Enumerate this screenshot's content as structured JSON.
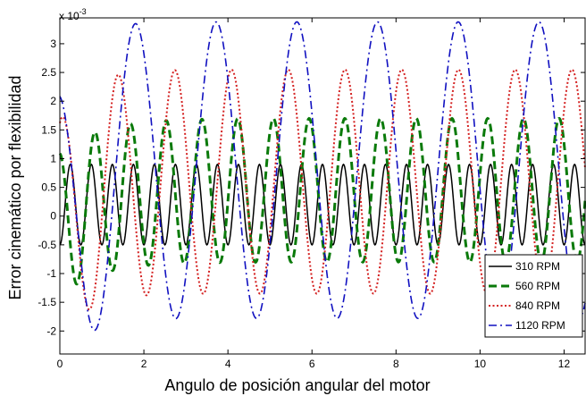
{
  "chart_data": {
    "type": "line",
    "xlabel": "Angulo de posición angular del motor",
    "ylabel": "Error cinemático por flexibilidad",
    "y_exponent_label": "x 10",
    "y_exponent_power": "-3",
    "xlim": [
      0,
      12.5
    ],
    "ylim": [
      -2.4,
      3.45
    ],
    "x_ticks": [
      0,
      2,
      4,
      6,
      8,
      10,
      12
    ],
    "y_ticks": [
      -2,
      -1.5,
      -1,
      -0.5,
      0,
      0.5,
      1,
      1.5,
      2,
      2.5,
      3
    ],
    "grid": false,
    "legend_position": "bottom-right",
    "series": [
      {
        "name": "310 RPM",
        "color": "#000000",
        "style": "solid",
        "offset": 0.2,
        "amplitude": 0.7,
        "period": 0.5,
        "phase": 0.125,
        "decay": 0,
        "decay_rate": 1
      },
      {
        "name": "560 RPM",
        "color": "#0a7a0a",
        "style": "dashed",
        "offset": 0.45,
        "amplitude": 1.25,
        "period": 0.85,
        "phase": 0.62,
        "decay": 0.6,
        "decay_rate": 0.9
      },
      {
        "name": "840 RPM",
        "color": "#d42020",
        "style": "dotted",
        "offset": 0.6,
        "amplitude": 1.95,
        "period": 1.35,
        "phase": 1.05,
        "decay": 0.9,
        "decay_rate": 0.6
      },
      {
        "name": "1120 RPM",
        "color": "#1010c0",
        "style": "dashdot",
        "offset": 0.8,
        "amplitude": 2.58,
        "period": 1.92,
        "phase": 1.32,
        "decay": 1.1,
        "decay_rate": 0.5
      }
    ]
  }
}
